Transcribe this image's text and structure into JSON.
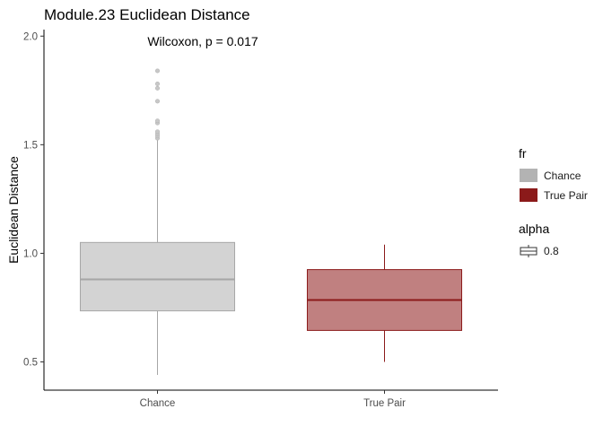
{
  "chart_data": {
    "type": "boxplot",
    "title": "Module.23 Euclidean Distance",
    "xlabel": "",
    "ylabel": "Euclidean Distance",
    "ylim": [
      0.37,
      2.03
    ],
    "yticks": [
      0.5,
      1.0,
      1.5,
      2.0
    ],
    "ytick_labels": [
      "0.5",
      "1.0",
      "1.5",
      "2.0"
    ],
    "categories": [
      "Chance",
      "True Pair"
    ],
    "annotation": "Wilcoxon, p = 0.017",
    "grid": false,
    "legend_position": "right",
    "series": [
      {
        "category": "Chance",
        "whisker_low": 0.44,
        "q1": 0.735,
        "median": 0.88,
        "q3": 1.05,
        "whisker_high": 1.52,
        "outliers": [
          1.53,
          1.54,
          1.55,
          1.56,
          1.6,
          1.61,
          1.7,
          1.76,
          1.78,
          1.84
        ],
        "fill": "#d3d3d3",
        "stroke": "#a6a6a6",
        "median_color": "#a6a6a6"
      },
      {
        "category": "True Pair",
        "whisker_low": 0.5,
        "q1": 0.645,
        "median": 0.785,
        "q3": 0.925,
        "whisker_high": 1.04,
        "outliers": [],
        "fill": "#c08080",
        "stroke": "#8b1a1a",
        "median_color": "#8b1a1a"
      }
    ],
    "legends": [
      {
        "title": "fr",
        "items": [
          {
            "label": "Chance",
            "color": "#b3b3b3"
          },
          {
            "label": "True Pair",
            "color": "#8b1a1a"
          }
        ]
      },
      {
        "title": "alpha",
        "items": [
          {
            "label": "0.8",
            "color": "#ffffff"
          }
        ]
      }
    ]
  }
}
